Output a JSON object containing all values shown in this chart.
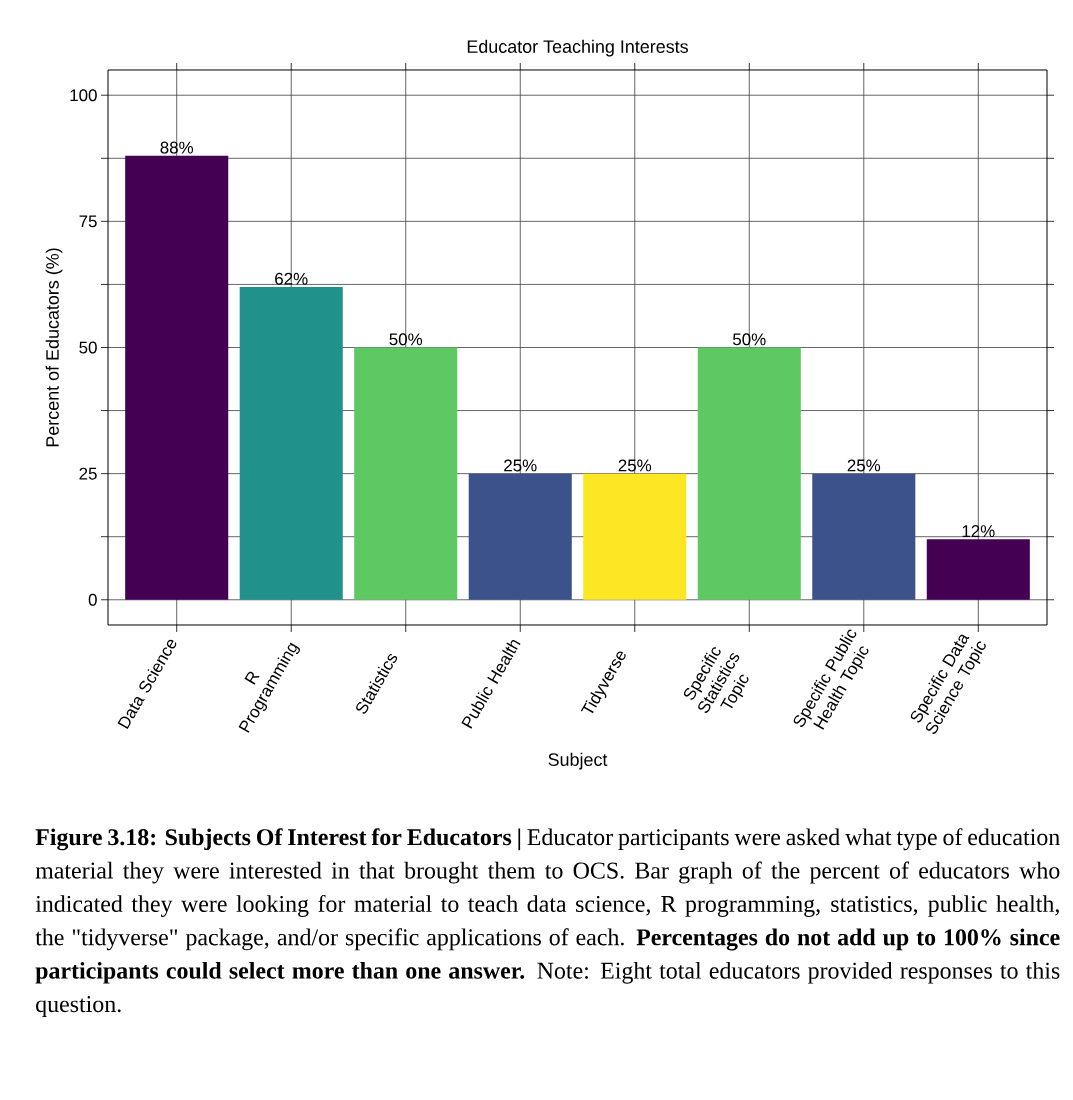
{
  "chart_data": {
    "type": "bar",
    "title": "Educator Teaching Interests",
    "xlabel": "Subject",
    "ylabel": "Percent of Educators (%)",
    "categories": [
      "Data Science",
      "R Programming",
      "Statistics",
      "Public Health",
      "Tidyverse",
      "Specific Statistics Topic",
      "Specific Public Health Topic",
      "Specific Data Science Topic"
    ],
    "values": [
      88,
      62,
      50,
      25,
      25,
      50,
      25,
      12
    ],
    "colors": [
      "#440154",
      "#21918c",
      "#5ec962",
      "#3b528b",
      "#fde725",
      "#5ec962",
      "#3b528b",
      "#440154"
    ],
    "value_labels": [
      "88%",
      "62%",
      "50%",
      "25%",
      "25%",
      "50%",
      "25%",
      "12%"
    ],
    "ylim": [
      -5,
      105
    ],
    "yticks": [
      0,
      {
        "value": 12.5,
        "label": null
      },
      25,
      {
        "value": 37.5,
        "label": null
      },
      50,
      {
        "value": 62.5,
        "label": null
      },
      75,
      {
        "value": 87.5,
        "label": null
      },
      100
    ],
    "grid": true,
    "annotations": [
      "**Figure 3.18: Subjects Of Interest for Educators |** Educator participants were asked what type of education material they were interested in that brought them to OCS. Bar graph of the percent of educators who indicated they were looking for material to teach data science, R programming, statistics, public health, the \"tidyverse\" package, and/or specific applications of each. **Percentages do not add up to 100% since participants could select more than one answer.** Note: Eight total educators provided responses to this question."
    ]
  }
}
